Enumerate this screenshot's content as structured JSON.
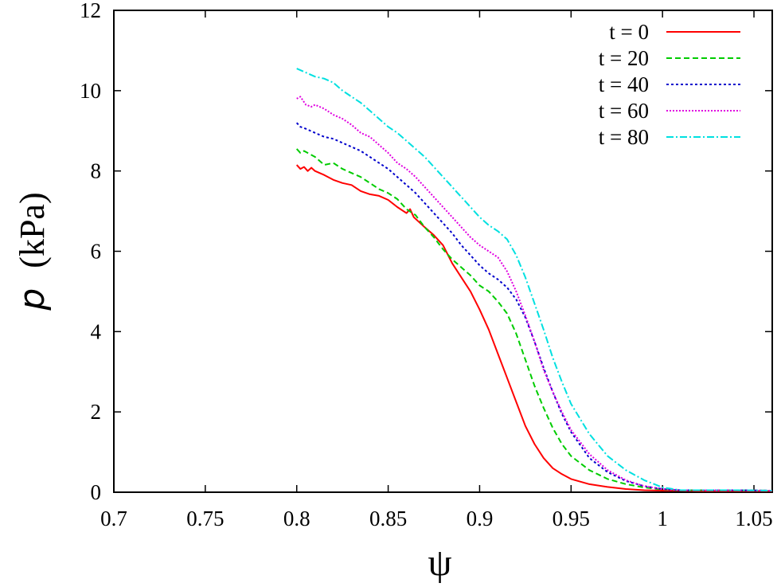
{
  "chart_data": {
    "type": "line",
    "title": "",
    "xlabel": "ψ",
    "ylabel_symbol": "p",
    "ylabel_unit": "(kPa)",
    "xlim": [
      0.7,
      1.06
    ],
    "ylim": [
      0,
      12
    ],
    "xticks": [
      0.7,
      0.75,
      0.8,
      0.85,
      0.9,
      0.95,
      1.0,
      1.05
    ],
    "xtick_labels": [
      "0.7",
      "0.75",
      "0.8",
      "0.85",
      "0.9",
      "0.95",
      "1",
      "1.05"
    ],
    "yticks": [
      0,
      2,
      4,
      6,
      8,
      10,
      12
    ],
    "ytick_labels": [
      "0",
      "2",
      "4",
      "6",
      "8",
      "10",
      "12"
    ],
    "grid": false,
    "legend_position": "top-right",
    "series": [
      {
        "name": "t = 0",
        "color": "#ff0000",
        "dash": "solid",
        "x": [
          0.8,
          0.802,
          0.804,
          0.806,
          0.808,
          0.81,
          0.815,
          0.82,
          0.825,
          0.83,
          0.835,
          0.84,
          0.845,
          0.85,
          0.855,
          0.86,
          0.862,
          0.864,
          0.87,
          0.875,
          0.88,
          0.885,
          0.89,
          0.895,
          0.9,
          0.905,
          0.91,
          0.915,
          0.92,
          0.925,
          0.93,
          0.935,
          0.94,
          0.945,
          0.95,
          0.96,
          0.97,
          0.98,
          0.99,
          1.0,
          1.01,
          1.02,
          1.04,
          1.06
        ],
        "y": [
          8.15,
          8.05,
          8.1,
          8.0,
          8.08,
          8.0,
          7.9,
          7.78,
          7.7,
          7.65,
          7.5,
          7.42,
          7.38,
          7.28,
          7.1,
          6.95,
          7.05,
          6.85,
          6.6,
          6.4,
          6.15,
          5.7,
          5.35,
          5.0,
          4.55,
          4.05,
          3.45,
          2.85,
          2.25,
          1.65,
          1.2,
          0.85,
          0.6,
          0.45,
          0.33,
          0.2,
          0.13,
          0.08,
          0.05,
          0.04,
          0.04,
          0.03,
          0.03,
          0.03
        ]
      },
      {
        "name": "t = 20",
        "color": "#00cc00",
        "dash": "dashed",
        "x": [
          0.8,
          0.802,
          0.804,
          0.806,
          0.808,
          0.81,
          0.815,
          0.82,
          0.825,
          0.83,
          0.835,
          0.84,
          0.845,
          0.85,
          0.855,
          0.86,
          0.865,
          0.87,
          0.875,
          0.88,
          0.885,
          0.89,
          0.895,
          0.9,
          0.905,
          0.91,
          0.915,
          0.92,
          0.925,
          0.93,
          0.935,
          0.94,
          0.945,
          0.95,
          0.96,
          0.97,
          0.98,
          0.99,
          1.0,
          1.01,
          1.02,
          1.04,
          1.06
        ],
        "y": [
          8.55,
          8.45,
          8.5,
          8.45,
          8.4,
          8.35,
          8.15,
          8.2,
          8.05,
          7.95,
          7.85,
          7.7,
          7.55,
          7.45,
          7.3,
          7.05,
          6.9,
          6.6,
          6.35,
          6.05,
          5.8,
          5.6,
          5.4,
          5.15,
          5.0,
          4.75,
          4.45,
          3.95,
          3.3,
          2.65,
          2.1,
          1.6,
          1.2,
          0.9,
          0.55,
          0.33,
          0.2,
          0.12,
          0.07,
          0.05,
          0.05,
          0.05,
          0.04
        ]
      },
      {
        "name": "t = 40",
        "color": "#0000cc",
        "dash": "dotted",
        "x": [
          0.8,
          0.802,
          0.805,
          0.81,
          0.815,
          0.82,
          0.825,
          0.83,
          0.835,
          0.84,
          0.845,
          0.85,
          0.855,
          0.86,
          0.865,
          0.87,
          0.875,
          0.88,
          0.885,
          0.89,
          0.895,
          0.9,
          0.905,
          0.91,
          0.915,
          0.92,
          0.925,
          0.93,
          0.935,
          0.94,
          0.945,
          0.95,
          0.96,
          0.97,
          0.98,
          0.99,
          1.0,
          1.01,
          1.02,
          1.04,
          1.06
        ],
        "y": [
          9.2,
          9.1,
          9.05,
          8.95,
          8.85,
          8.8,
          8.7,
          8.6,
          8.5,
          8.35,
          8.2,
          8.05,
          7.85,
          7.65,
          7.45,
          7.2,
          6.95,
          6.7,
          6.45,
          6.15,
          5.9,
          5.65,
          5.45,
          5.3,
          5.1,
          4.8,
          4.35,
          3.75,
          3.1,
          2.5,
          1.95,
          1.5,
          0.85,
          0.5,
          0.28,
          0.15,
          0.08,
          0.05,
          0.05,
          0.05,
          0.04
        ]
      },
      {
        "name": "t = 60",
        "color": "#e000e0",
        "dash": "fine-dotted",
        "x": [
          0.8,
          0.802,
          0.805,
          0.808,
          0.81,
          0.815,
          0.82,
          0.825,
          0.83,
          0.835,
          0.84,
          0.845,
          0.85,
          0.855,
          0.86,
          0.865,
          0.87,
          0.875,
          0.88,
          0.885,
          0.89,
          0.895,
          0.9,
          0.905,
          0.91,
          0.915,
          0.92,
          0.925,
          0.93,
          0.935,
          0.94,
          0.945,
          0.95,
          0.96,
          0.97,
          0.98,
          0.99,
          1.0,
          1.01,
          1.02,
          1.04,
          1.06
        ],
        "y": [
          9.8,
          9.85,
          9.65,
          9.6,
          9.65,
          9.55,
          9.4,
          9.3,
          9.15,
          8.95,
          8.85,
          8.65,
          8.45,
          8.2,
          8.05,
          7.85,
          7.6,
          7.35,
          7.1,
          6.85,
          6.6,
          6.35,
          6.15,
          6.0,
          5.85,
          5.5,
          5.0,
          4.4,
          3.75,
          3.05,
          2.5,
          2.0,
          1.55,
          0.95,
          0.55,
          0.3,
          0.15,
          0.08,
          0.05,
          0.05,
          0.05,
          0.04
        ]
      },
      {
        "name": "t = 80",
        "color": "#00e0e0",
        "dash": "dash-dot",
        "x": [
          0.8,
          0.805,
          0.81,
          0.815,
          0.82,
          0.825,
          0.83,
          0.835,
          0.84,
          0.845,
          0.85,
          0.855,
          0.86,
          0.865,
          0.87,
          0.875,
          0.88,
          0.885,
          0.89,
          0.895,
          0.9,
          0.905,
          0.91,
          0.915,
          0.92,
          0.925,
          0.93,
          0.935,
          0.94,
          0.945,
          0.95,
          0.96,
          0.97,
          0.98,
          0.99,
          1.0,
          1.01,
          1.02,
          1.04,
          1.06
        ],
        "y": [
          10.55,
          10.45,
          10.35,
          10.3,
          10.2,
          10.0,
          9.85,
          9.7,
          9.5,
          9.3,
          9.1,
          8.95,
          8.75,
          8.55,
          8.35,
          8.1,
          7.85,
          7.6,
          7.35,
          7.1,
          6.85,
          6.65,
          6.5,
          6.3,
          5.9,
          5.35,
          4.7,
          4.05,
          3.35,
          2.75,
          2.2,
          1.45,
          0.9,
          0.55,
          0.3,
          0.12,
          0.05,
          0.05,
          0.05,
          0.04
        ]
      }
    ]
  }
}
